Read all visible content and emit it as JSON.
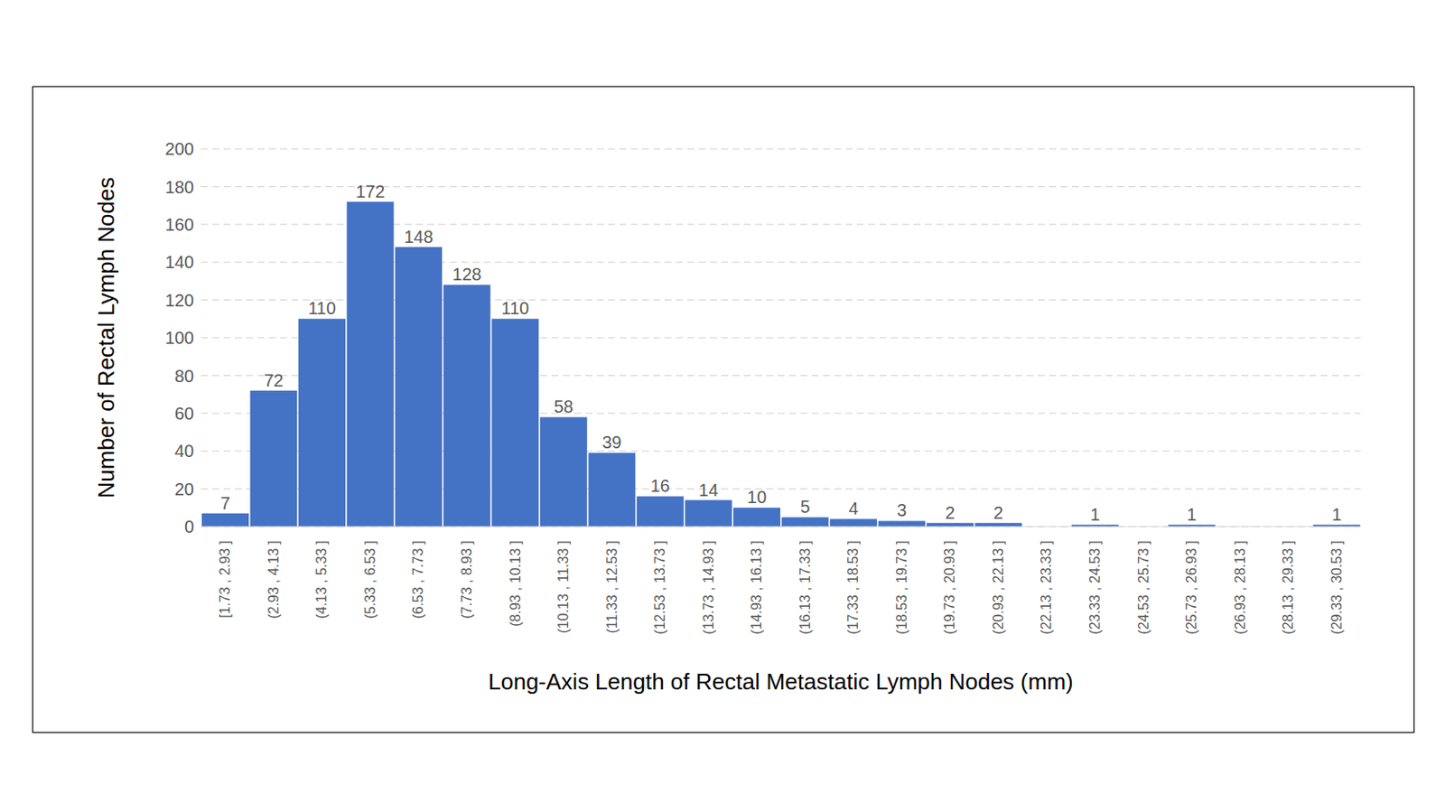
{
  "chart_data": {
    "type": "bar",
    "xlabel": "Long-Axis Length of Rectal Metastatic Lymph Nodes (mm)",
    "ylabel": "Number of Rectal Lymph Nodes",
    "categories": [
      "[1.73 , 2.93 ]",
      "(2.93 , 4.13 ]",
      "(4.13 , 5.33 ]",
      "(5.33 , 6.53 ]",
      "(6.53 , 7.73 ]",
      "(7.73 , 8.93 ]",
      "(8.93 , 10.13 ]",
      "(10.13 , 11.33 ]",
      "(11.33 , 12.53 ]",
      "(12.53 , 13.73 ]",
      "(13.73 , 14.93 ]",
      "(14.93 , 16.13 ]",
      "(16.13 , 17.33 ]",
      "(17.33 , 18.53 ]",
      "(18.53 , 19.73 ]",
      "(19.73 , 20.93 ]",
      "(20.93 , 22.13 ]",
      "(22.13 , 23.33 ]",
      "(23.33 , 24.53 ]",
      "(24.53 , 25.73 ]",
      "(25.73 , 26.93 ]",
      "(26.93 , 28.13 ]",
      "(28.13 , 29.33 ]",
      "(29.33 , 30.53 ]"
    ],
    "values": [
      7,
      72,
      110,
      172,
      148,
      128,
      110,
      58,
      39,
      16,
      14,
      10,
      5,
      4,
      3,
      2,
      2,
      0,
      1,
      0,
      1,
      0,
      0,
      1
    ],
    "color": "#4472c4",
    "ylim": [
      0,
      200
    ],
    "yticks": [
      0,
      20,
      40,
      60,
      80,
      100,
      120,
      140,
      160,
      180,
      200
    ],
    "grid": true,
    "data_labels": true
  }
}
